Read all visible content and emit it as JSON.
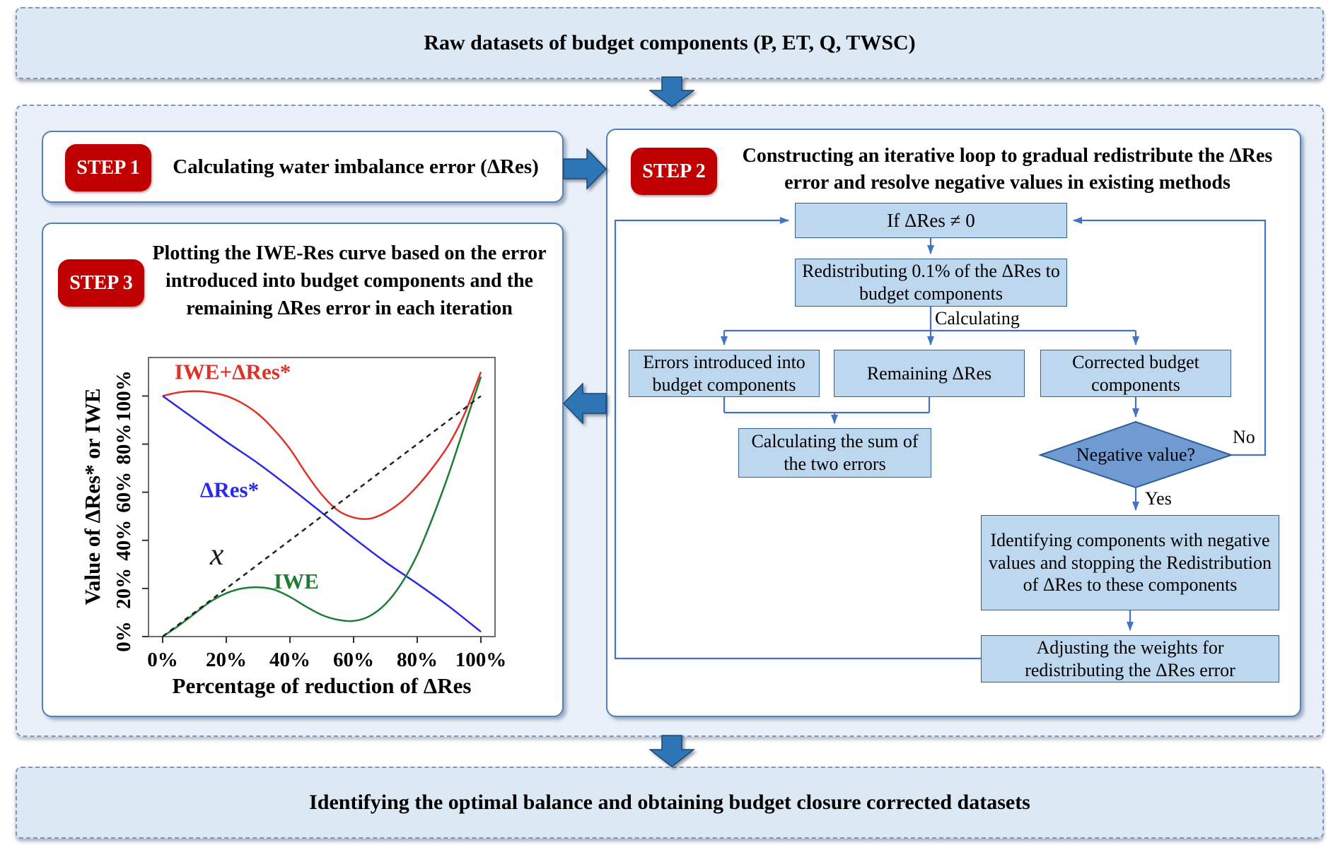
{
  "palette": {
    "banner_fill": "#dde8f5",
    "panel_fill": "#e9f0f9",
    "card_border": "#4f81bd",
    "node_fill": "#bdd7ee",
    "node_border": "#376092",
    "diamond_fill": "#6f9bd2",
    "connector_blue": "#4472c4",
    "badge_red": "#c00000",
    "block_arrow_blue": "#2e75b6"
  },
  "top_banner": {
    "label": "Raw datasets of budget components (P, ET, Q, TWSC)"
  },
  "bottom_banner": {
    "label": "Identifying the optimal balance and obtaining budget closure corrected datasets"
  },
  "step1": {
    "badge": "STEP 1",
    "title": "Calculating water imbalance error (ΔRes)"
  },
  "step2": {
    "badge": "STEP 2",
    "title": "Constructing an iterative loop to gradual redistribute the ΔRes error and resolve negative values in existing methods",
    "nodes": {
      "if_box": "If ΔRes ≠ 0",
      "redistribute_box": "Redistributing 0.1% of the ΔRes to budget components",
      "calculating_label": "Calculating",
      "errors_box": "Errors introduced into budget components",
      "remaining_box": "Remaining ΔRes",
      "corrected_box": "Corrected budget components",
      "sum_box": "Calculating the sum of the two errors",
      "negative_diamond": "Negative value?",
      "no_label": "No",
      "yes_label": "Yes",
      "identify_box": "Identifying components with negative values and stopping the Redistribution of ΔRes to these components",
      "adjust_box": "Adjusting the weights for redistributing the ΔRes error"
    }
  },
  "step3": {
    "badge": "STEP 3",
    "title": "Plotting the IWE-Res curve based on the error introduced into budget components and the remaining ΔRes error in each iteration"
  },
  "chart_data": {
    "type": "line",
    "title": "",
    "xlabel": "Percentage of reduction of ΔRes",
    "ylabel": "Value of ΔRes* or IWE",
    "x_ticks": [
      "0%",
      "20%",
      "40%",
      "60%",
      "80%",
      "100%"
    ],
    "y_ticks": [
      "0%",
      "20%",
      "40%",
      "60%",
      "80%",
      "100%"
    ],
    "x_tick_values": [
      0,
      20,
      40,
      60,
      80,
      100
    ],
    "y_tick_values": [
      0,
      20,
      40,
      60,
      80,
      100
    ],
    "xlim": [
      0,
      100
    ],
    "ylim": [
      0,
      116
    ],
    "grid": false,
    "legend_position": "inline-annotations",
    "series": [
      {
        "name": "IWE+ΔRes*",
        "color": "#e03127",
        "style": "solid",
        "x": [
          0,
          5,
          10,
          15,
          20,
          25,
          30,
          35,
          40,
          45,
          50,
          55,
          60,
          65,
          70,
          75,
          80,
          85,
          90,
          95,
          100
        ],
        "y": [
          100,
          101.5,
          102,
          101.5,
          100,
          97,
          92.5,
          86,
          78,
          68,
          59,
          52.5,
          49.5,
          49,
          51.5,
          56,
          62.5,
          70.5,
          80,
          93,
          110
        ]
      },
      {
        "name": "ΔRes*",
        "color": "#2a2ae6",
        "style": "solid",
        "x": [
          0,
          10,
          20,
          30,
          40,
          50,
          60,
          70,
          80,
          90,
          100
        ],
        "y": [
          100,
          90.5,
          81,
          72,
          62,
          51.5,
          41,
          31,
          22,
          12.5,
          2
        ]
      },
      {
        "name": "IWE",
        "color": "#1e7d32",
        "style": "solid",
        "x": [
          0,
          5,
          10,
          15,
          20,
          25,
          30,
          35,
          40,
          45,
          50,
          55,
          60,
          65,
          70,
          75,
          80,
          85,
          90,
          95,
          100
        ],
        "y": [
          0,
          4.5,
          9.5,
          14.5,
          18,
          20,
          20.5,
          19.5,
          16.5,
          12.5,
          9,
          7,
          6.5,
          8.5,
          13.5,
          22,
          34,
          50,
          68,
          88,
          108
        ]
      },
      {
        "name": "x",
        "color": "#222222",
        "style": "dashed",
        "x": [
          0,
          100
        ],
        "y": [
          0,
          100
        ]
      }
    ],
    "annotations": [
      {
        "text": "IWE+ΔRes*",
        "color": "#e03127",
        "x": 22,
        "y": 107,
        "size": 31,
        "bold": true,
        "italic": false
      },
      {
        "text": "ΔRes*",
        "color": "#2a2ae6",
        "x": 21,
        "y": 58,
        "size": 31,
        "bold": true,
        "italic": false
      },
      {
        "text": "x",
        "color": "#1a1a1a",
        "x": 17,
        "y": 30,
        "size": 44,
        "bold": false,
        "italic": true
      },
      {
        "text": "IWE",
        "color": "#1e7d32",
        "x": 42,
        "y": 20,
        "size": 31,
        "bold": true,
        "italic": false
      }
    ]
  }
}
